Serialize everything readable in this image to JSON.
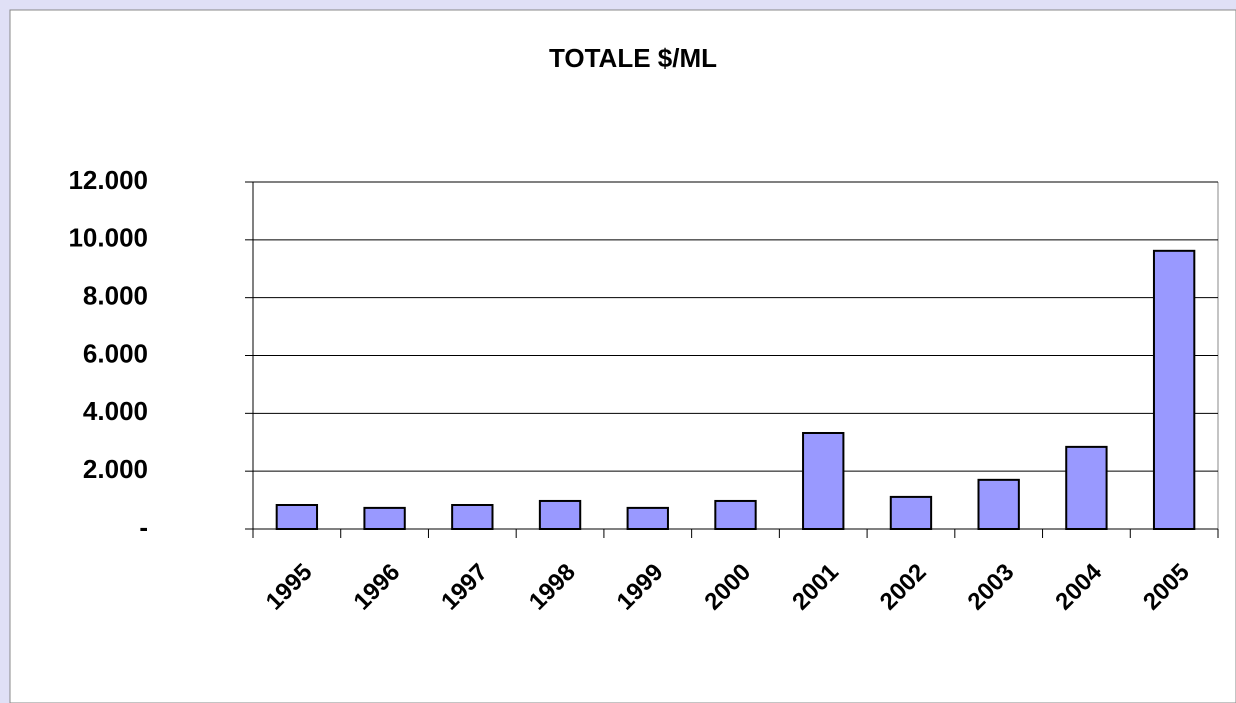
{
  "chart_data": {
    "type": "bar",
    "title": "TOTALE $/ML",
    "categories": [
      "1995",
      "1996",
      "1997",
      "1998",
      "1999",
      "2000",
      "2001",
      "2002",
      "2003",
      "2004",
      "2005"
    ],
    "values": [
      830,
      730,
      830,
      970,
      730,
      970,
      3320,
      1110,
      1700,
      2840,
      9620
    ],
    "color": "#9999ff",
    "ylim": [
      0,
      12000
    ],
    "yticks": [
      {
        "value": 0,
        "label": "-"
      },
      {
        "value": 2000,
        "label": "2.000"
      },
      {
        "value": 4000,
        "label": "4.000"
      },
      {
        "value": 6000,
        "label": "6.000"
      },
      {
        "value": 8000,
        "label": "8.000"
      },
      {
        "value": 10000,
        "label": "10.000"
      },
      {
        "value": 12000,
        "label": "12.000"
      }
    ],
    "grid": true
  }
}
